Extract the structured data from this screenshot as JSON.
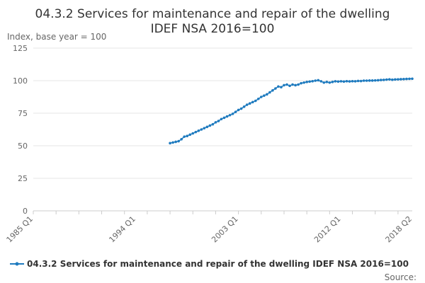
{
  "chart_data": {
    "type": "line",
    "title_lines": [
      "04.3.2 Services for maintenance and repair of the dwelling",
      "IDEF NSA 2016=100"
    ],
    "ylabel": "Index, base year = 100",
    "xlabel": "",
    "ylim": [
      0,
      125
    ],
    "y_ticks": [
      "0",
      "25",
      "50",
      "75",
      "100",
      "125"
    ],
    "x_tick_labels": [
      "1985 Q1",
      "1994 Q1",
      "2003 Q1",
      "2012 Q1",
      "2018 Q2"
    ],
    "x_tick_positions": [
      "1985 Q1",
      "1994 Q1",
      "2003 Q1",
      "2012 Q1",
      "2018 Q2"
    ],
    "x_range": [
      "1985 Q1",
      "2018 Q2"
    ],
    "grid": "horizontal",
    "legend_position": "bottom",
    "source_label": "Source:",
    "colors": {
      "series": "#1f7bbf",
      "grid": "#e6e6e6",
      "axis": "#cccccc"
    },
    "series": [
      {
        "name": "04.3.2 Services for maintenance and repair of the dwelling IDEF NSA 2016=100",
        "x": [
          "1997 Q1",
          "1997 Q2",
          "1997 Q3",
          "1997 Q4",
          "1998 Q1",
          "1998 Q2",
          "1998 Q3",
          "1998 Q4",
          "1999 Q1",
          "1999 Q2",
          "1999 Q3",
          "1999 Q4",
          "2000 Q1",
          "2000 Q2",
          "2000 Q3",
          "2000 Q4",
          "2001 Q1",
          "2001 Q2",
          "2001 Q3",
          "2001 Q4",
          "2002 Q1",
          "2002 Q2",
          "2002 Q3",
          "2002 Q4",
          "2003 Q1",
          "2003 Q2",
          "2003 Q3",
          "2003 Q4",
          "2004 Q1",
          "2004 Q2",
          "2004 Q3",
          "2004 Q4",
          "2005 Q1",
          "2005 Q2",
          "2005 Q3",
          "2005 Q4",
          "2006 Q1",
          "2006 Q2",
          "2006 Q3",
          "2006 Q4",
          "2007 Q1",
          "2007 Q2",
          "2007 Q3",
          "2007 Q4",
          "2008 Q1",
          "2008 Q2",
          "2008 Q3",
          "2008 Q4",
          "2009 Q1",
          "2009 Q2",
          "2009 Q3",
          "2009 Q4",
          "2010 Q1",
          "2010 Q2",
          "2010 Q3",
          "2010 Q4",
          "2011 Q1",
          "2011 Q2",
          "2011 Q3",
          "2011 Q4",
          "2012 Q1",
          "2012 Q2",
          "2012 Q3",
          "2012 Q4",
          "2013 Q1",
          "2013 Q2",
          "2013 Q3",
          "2013 Q4",
          "2014 Q1",
          "2014 Q2",
          "2014 Q3",
          "2014 Q4",
          "2015 Q1",
          "2015 Q2",
          "2015 Q3",
          "2015 Q4",
          "2016 Q1",
          "2016 Q2",
          "2016 Q3",
          "2016 Q4",
          "2017 Q1",
          "2017 Q2",
          "2017 Q3",
          "2017 Q4",
          "2018 Q1",
          "2018 Q2"
        ],
        "values": [
          52,
          52.5,
          53,
          53.5,
          55,
          57,
          57.5,
          58.5,
          59.5,
          60.5,
          61.5,
          62.5,
          63.5,
          64.5,
          65.5,
          66.5,
          68,
          69,
          70.5,
          71.5,
          72.5,
          73.5,
          74.5,
          76,
          77.5,
          78.5,
          80,
          81.5,
          82.5,
          83.5,
          84.5,
          86,
          87.5,
          88.5,
          89.5,
          91,
          92.5,
          94,
          95.5,
          95,
          96.5,
          97,
          96,
          97,
          96.5,
          97,
          98,
          98.5,
          99,
          99.3,
          99.6,
          100,
          100.3,
          99.5,
          98.5,
          99,
          98.5,
          99,
          99.5,
          99.3,
          99.5,
          99.3,
          99.6,
          99.4,
          99.6,
          99.5,
          99.8,
          99.7,
          100,
          100,
          100.1,
          100.1,
          100.2,
          100.3,
          100.5,
          100.6,
          100.8,
          101,
          100.7,
          100.9,
          101,
          101.1,
          101.2,
          101.3,
          101.4,
          101.5
        ]
      }
    ]
  }
}
